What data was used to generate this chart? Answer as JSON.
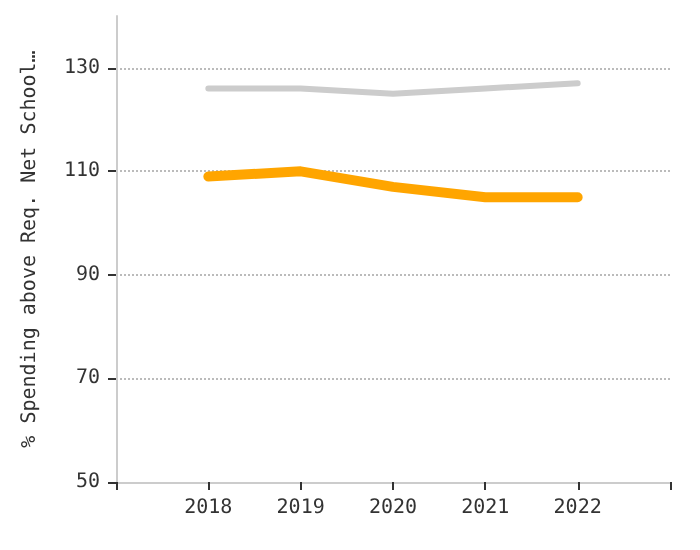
{
  "chart_data": {
    "type": "line",
    "ylabel": "% Spending above Req. Net School…",
    "x": [
      2018,
      2019,
      2020,
      2021,
      2022
    ],
    "series": [
      {
        "color": "#cccccc",
        "values": [
          126,
          126,
          125,
          126,
          127
        ]
      },
      {
        "color": "#ffa500",
        "values": [
          109,
          110,
          107,
          105,
          105
        ]
      }
    ],
    "xlim": [
      2017,
      2023
    ],
    "xticks": [
      {
        "value": 2017,
        "label": null
      },
      2018,
      2019,
      2020,
      2021,
      2022,
      {
        "value": 2023,
        "label": null
      }
    ],
    "ylim": [
      50,
      140
    ],
    "yticks": [
      50,
      70,
      90,
      110,
      130
    ],
    "grid": "y",
    "marker": "none",
    "line_style": "solid"
  }
}
